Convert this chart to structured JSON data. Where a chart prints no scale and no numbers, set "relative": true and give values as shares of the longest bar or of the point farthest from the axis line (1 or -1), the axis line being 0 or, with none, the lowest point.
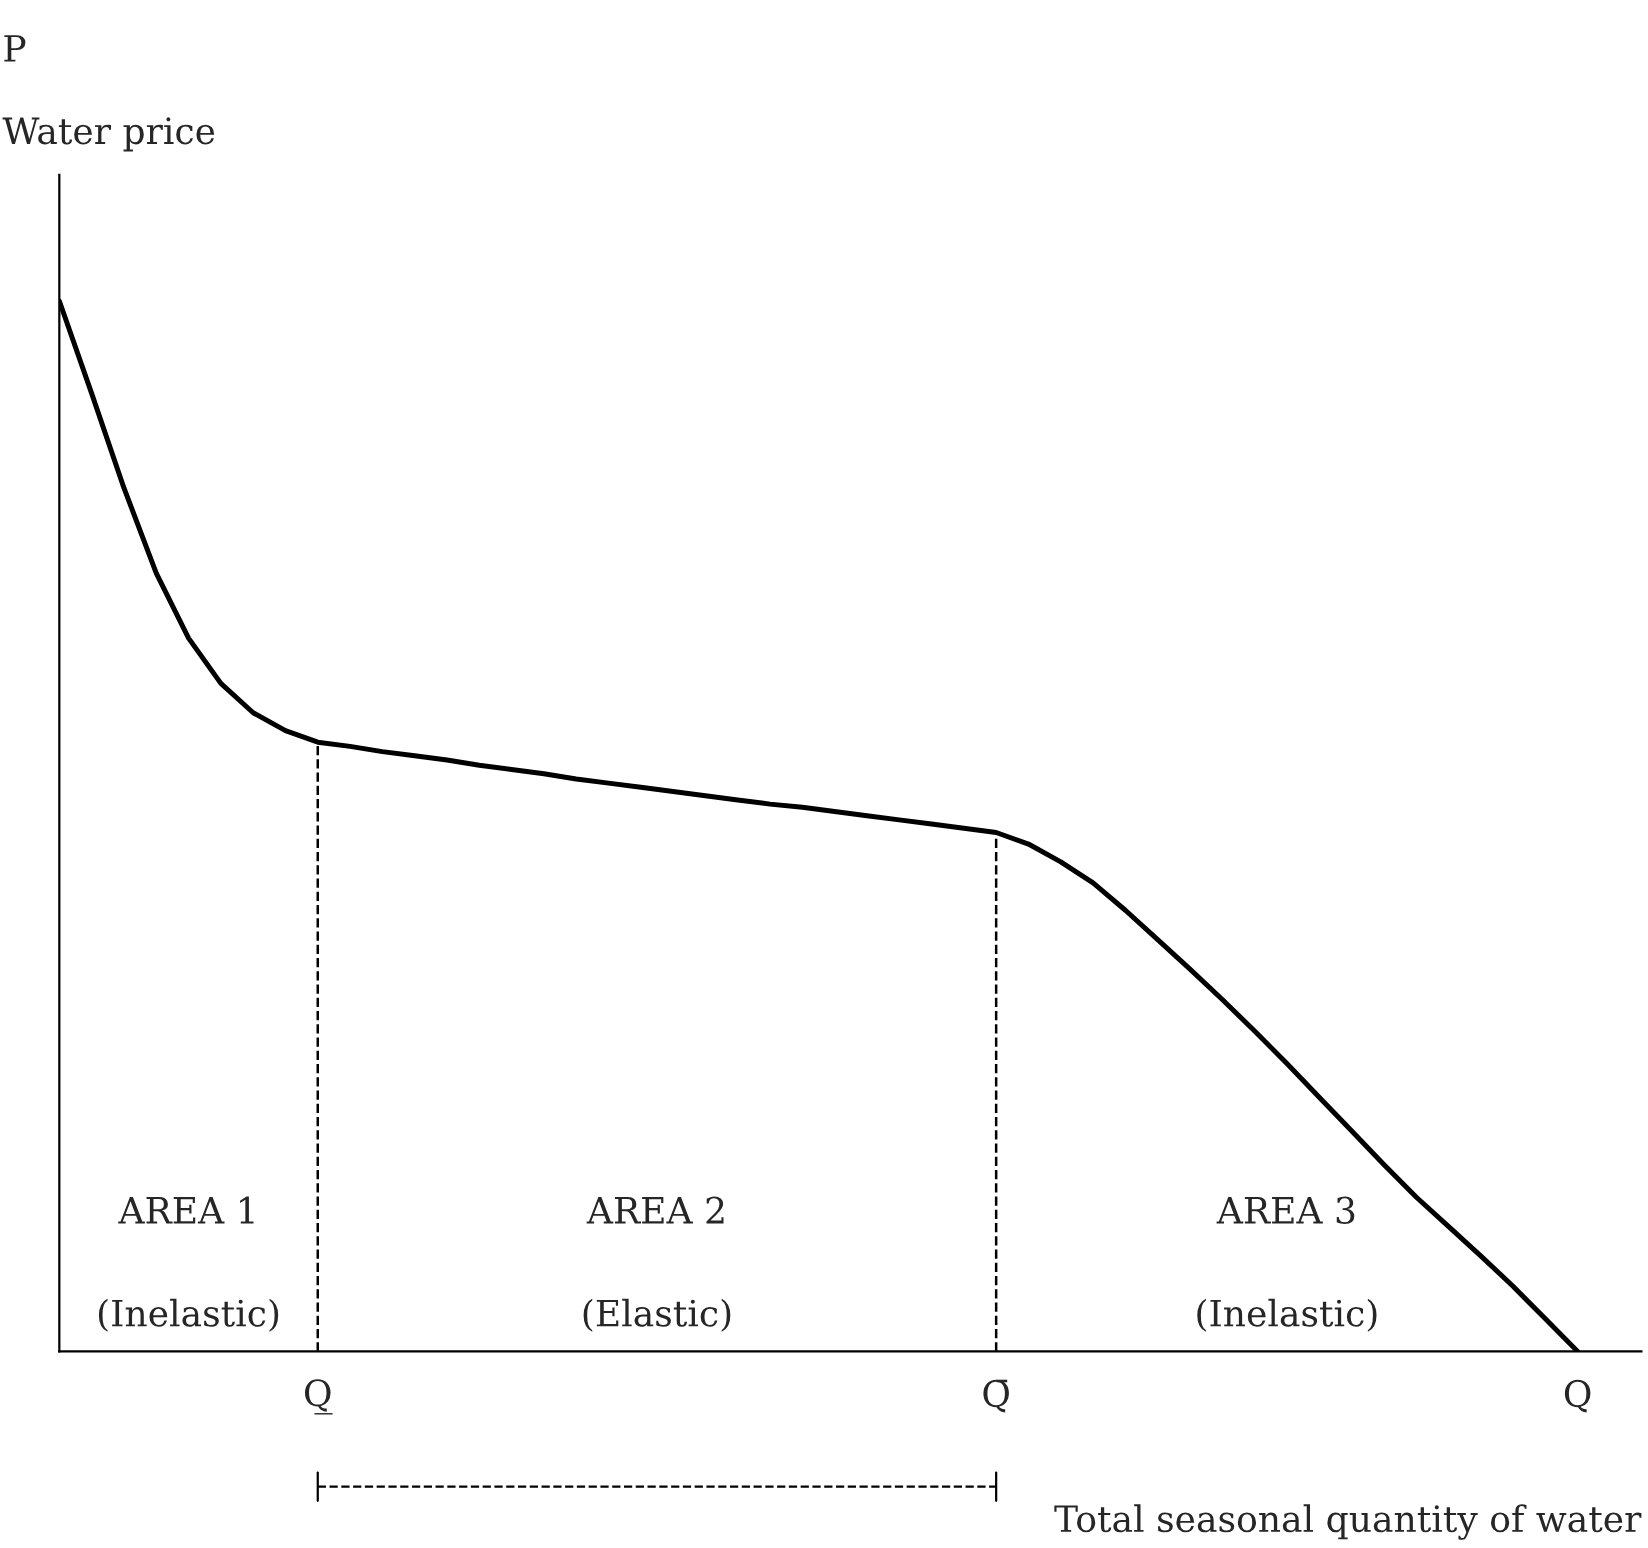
{
  "chart_data": {
    "type": "line",
    "relative": true,
    "ylabel": "Water price",
    "xlabel": "Total seasonal quantity of water",
    "annotations": [
      "P",
      "AREA 1\n\n(Inelastic)",
      "AREA 2\n\n(Elastic)",
      "AREA 3\n\n(Inelastic)"
    ],
    "categories": [
      null,
      null,
      null,
      null,
      null,
      null,
      null,
      null,
      "Q̲",
      null,
      null,
      null,
      null,
      null,
      null,
      null,
      null,
      null,
      null,
      null,
      null,
      null,
      null,
      null,
      null,
      null,
      null,
      null,
      null,
      "Q̄",
      null,
      null,
      null,
      null,
      null,
      null,
      null,
      null,
      null,
      null,
      null,
      null,
      null,
      null,
      null,
      null,
      null,
      "Q"
    ],
    "series": [
      {
        "color": "#000000",
        "values": [
          1.0,
          0.912,
          0.822,
          0.741,
          0.679,
          0.636,
          0.608,
          0.591,
          0.58,
          0.576,
          0.571,
          0.567,
          0.563,
          0.558,
          0.554,
          0.55,
          0.545,
          0.541,
          0.537,
          0.533,
          0.529,
          0.525,
          0.521,
          0.518,
          0.514,
          0.51,
          0.506,
          0.502,
          0.498,
          0.494,
          0.483,
          0.466,
          0.446,
          0.42,
          0.392,
          0.364,
          0.335,
          0.305,
          0.274,
          0.242,
          0.21,
          0.178,
          0.147,
          0.119,
          0.091,
          0.062,
          0.031,
          0.0
        ]
      }
    ],
    "tick_labels": "x",
    "grid": "x",
    "legend": false,
    "marker": "none",
    "line_style": "solid"
  }
}
